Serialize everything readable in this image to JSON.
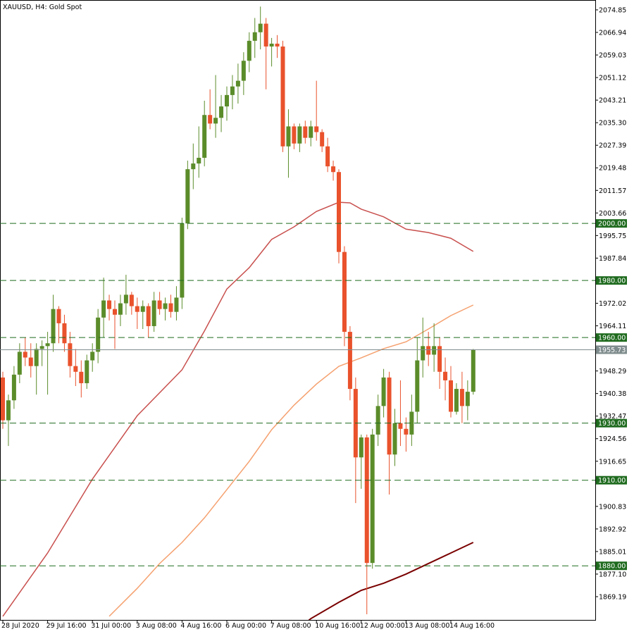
{
  "chart_data": {
    "type": "candlestick",
    "title": "XAUUSD, H4:  Gold Spot",
    "categories": [
      "28 Jul 2020",
      null,
      null,
      null,
      null,
      null,
      null,
      null,
      "29 Jul 16:00",
      null,
      null,
      null,
      null,
      null,
      null,
      null,
      "31 Jul 00:00",
      null,
      null,
      null,
      null,
      null,
      null,
      null,
      "3 Aug 08:00",
      null,
      null,
      null,
      null,
      null,
      null,
      null,
      "4 Aug 16:00",
      null,
      null,
      null,
      null,
      null,
      null,
      null,
      "6 Aug 00:00",
      null,
      null,
      null,
      null,
      null,
      null,
      null,
      "7 Aug 08:00",
      null,
      null,
      null,
      null,
      null,
      null,
      null,
      "10 Aug 16:00",
      null,
      null,
      null,
      null,
      null,
      null,
      null,
      "12 Aug 00:00",
      null,
      null,
      null,
      null,
      null,
      null,
      null,
      "13 Aug 08:00",
      null,
      null,
      null,
      null,
      null,
      null,
      null,
      "14 Aug 16:00",
      null,
      null,
      null,
      null
    ],
    "open": [
      1946,
      1931,
      1938,
      1947,
      1955,
      1953,
      1950,
      1956,
      1957,
      1958,
      1970,
      1965,
      1958,
      1950,
      1948,
      1944,
      1952,
      1955,
      1967,
      1973,
      1970,
      1968,
      1972,
      1975,
      1971,
      1969,
      1971,
      1964,
      1973,
      1970,
      1972,
      1969,
      1974,
      2000,
      2019,
      2021,
      2023,
      2038,
      2035,
      2037,
      2041,
      2045,
      2048,
      2050,
      2057,
      2064,
      2067,
      2070,
      2062,
      2063,
      2062,
      2027,
      2034,
      2028,
      2034,
      2030,
      2034,
      2032,
      2027,
      2020,
      2018,
      1990,
      1962,
      1942,
      1918,
      1925,
      1881,
      1926,
      1936,
      1946,
      1919,
      1930,
      1928,
      1926,
      1934,
      1952,
      1957,
      1954,
      1957,
      1948,
      1945,
      1934,
      1942,
      1936,
      1941
    ],
    "high": [
      1948,
      1940,
      1950,
      1958,
      1960,
      1958,
      1958,
      1959,
      1962,
      1975,
      1971,
      1968,
      1962,
      1956,
      1952,
      1954,
      1958,
      1970,
      1981,
      1975,
      1973,
      1975,
      1982,
      1976,
      1974,
      1973,
      1972,
      1976,
      1976,
      1974,
      1975,
      1978,
      2002,
      2022,
      2028,
      2034,
      2043,
      2047,
      2052,
      2045,
      2048,
      2052,
      2056,
      2060,
      2067,
      2072,
      2076,
      2072,
      2065,
      2066,
      2064,
      2040,
      2035,
      2035,
      2036,
      2036,
      2050,
      2033,
      2030,
      2022,
      2019,
      1992,
      1964,
      1946,
      1926,
      1926,
      1928,
      1940,
      1949,
      1948,
      1935,
      1945,
      1932,
      1940,
      1960,
      1967,
      1962,
      1965,
      1960,
      1953,
      1950,
      1944,
      1948,
      1945,
      1956
    ],
    "low": [
      1928,
      1922,
      1935,
      1944,
      1950,
      1946,
      1940,
      1950,
      1940,
      1955,
      1958,
      1955,
      1946,
      1943,
      1939,
      1942,
      1948,
      1951,
      1960,
      1966,
      1956,
      1964,
      1968,
      1968,
      1963,
      1963,
      1960,
      1962,
      1968,
      1966,
      1967,
      1966,
      1970,
      1998,
      2012,
      2016,
      2020,
      2033,
      2030,
      2032,
      2036,
      2040,
      2042,
      2045,
      2053,
      2058,
      2061,
      2047,
      2055,
      2058,
      2025,
      2016,
      2026,
      2025,
      2028,
      2027,
      2029,
      2025,
      2018,
      2015,
      1986,
      1957,
      1938,
      1902,
      1907,
      1863,
      1879,
      1922,
      1932,
      1905,
      1915,
      1922,
      1920,
      1922,
      1930,
      1946,
      1950,
      1948,
      1942,
      1938,
      1932,
      1933,
      1930,
      1931,
      1940
    ],
    "close": [
      1931,
      1938,
      1947,
      1955,
      1953,
      1950,
      1956,
      1957,
      1958,
      1970,
      1965,
      1958,
      1950,
      1948,
      1944,
      1952,
      1955,
      1967,
      1973,
      1970,
      1968,
      1972,
      1975,
      1971,
      1969,
      1971,
      1964,
      1973,
      1970,
      1972,
      1969,
      1974,
      2000,
      2019,
      2021,
      2023,
      2038,
      2035,
      2037,
      2041,
      2045,
      2048,
      2050,
      2057,
      2064,
      2067,
      2070,
      2062,
      2063,
      2062,
      2027,
      2034,
      2028,
      2034,
      2030,
      2034,
      2032,
      2027,
      2020,
      2018,
      1990,
      1962,
      1942,
      1918,
      1925,
      1881,
      1926,
      1936,
      1946,
      1919,
      1930,
      1928,
      1926,
      1934,
      1952,
      1957,
      1954,
      1957,
      1948,
      1945,
      1934,
      1942,
      1936,
      1941,
      1955.73
    ],
    "up_color": "#5b8c2a",
    "down_color": "#e9522c",
    "series": [
      {
        "color": "#c8504e",
        "x": [
          0,
          8,
          16,
          24,
          32,
          36,
          40,
          44,
          48,
          52,
          56,
          60,
          62,
          64,
          68,
          72,
          76,
          80,
          84
        ],
        "values": [
          1862.3,
          1884.5,
          1910.4,
          1932.6,
          1948.7,
          1962.3,
          1977,
          1984.5,
          1994.4,
          1998.8,
          2004.2,
          2007.4,
          2007.2,
          2005,
          2002.3,
          1998,
          1996.8,
          1994.8,
          1990.2
        ]
      },
      {
        "color": "#f5a06e",
        "x": [
          19,
          24,
          28,
          32,
          36,
          40,
          44,
          48,
          52,
          56,
          60,
          64,
          68,
          72,
          76,
          80,
          84
        ],
        "values": [
          1862.3,
          1872.1,
          1880.8,
          1888.2,
          1896.8,
          1906.7,
          1916.6,
          1927.7,
          1936.3,
          1943.7,
          1949.9,
          1952.9,
          1956.1,
          1958.5,
          1963,
          1967.7,
          1971.4
        ]
      },
      {
        "color": "#7a0000",
        "x": [
          54,
          55,
          60,
          64,
          68,
          72,
          76,
          80,
          84
        ],
        "values": [
          1859.8,
          1861.5,
          1867.2,
          1871.4,
          1873.9,
          1877.1,
          1880.8,
          1884.5,
          1888.2
        ]
      }
    ],
    "ylim": [
      1861.04,
      2078.3
    ],
    "yticks": [
      2074.85,
      2066.94,
      2059.03,
      2051.12,
      2043.21,
      {
        "value": 2035.3,
        "label": "2035.30"
      },
      2027.39,
      2019.48,
      2011.57,
      2003.66,
      1995.75,
      1987.84,
      1972.02,
      1964.11,
      1948.29,
      1940.38,
      1932.47,
      1924.56,
      1916.65,
      1900.83,
      1892.92,
      1885.01,
      {
        "value": 1877.1,
        "label": "1877.10"
      },
      1869.19
    ],
    "levels": [
      {
        "value": 2000,
        "label": "2000.00"
      },
      {
        "value": 1980,
        "label": "1980.00"
      },
      {
        "value": 1960,
        "label": "1960.00"
      },
      {
        "value": 1930,
        "label": "1930.00"
      },
      {
        "value": 1910,
        "label": "1910.00"
      },
      {
        "value": 1880,
        "label": "1880.00"
      }
    ],
    "level_color": "#1f6b1f",
    "last_price": 1955.73,
    "last_price_color": "#7f8c8d"
  }
}
